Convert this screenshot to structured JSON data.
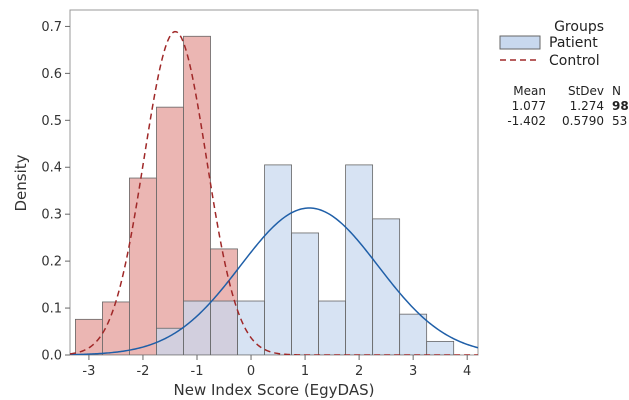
{
  "chart_data": {
    "type": "histogram",
    "xlabel": "New Index Score (EgyDAS)",
    "ylabel": "Density",
    "xlim": [
      -3.35,
      4.2
    ],
    "ylim": [
      0,
      0.735
    ],
    "x_ticks": [
      -3,
      -2,
      -1,
      0,
      1,
      2,
      3,
      4
    ],
    "y_ticks": [
      0.0,
      0.1,
      0.2,
      0.3,
      0.4,
      0.5,
      0.6,
      0.7
    ],
    "x_tick_labels": [
      "-3",
      "-2",
      "-1",
      "0",
      "1",
      "2",
      "3",
      "4"
    ],
    "y_tick_labels": [
      "0.0",
      "0.1",
      "0.2",
      "0.3",
      "0.4",
      "0.5",
      "0.6",
      "0.7"
    ],
    "bin_width": 0.5,
    "legend": {
      "title": "Groups",
      "position": "top-right"
    },
    "series": [
      {
        "name": "Patient",
        "fill_color": "#c8d8ee",
        "edge_color": "#666666",
        "curve_color": "#1f5fa8",
        "curve_style": "solid",
        "bins": [
          {
            "x0": -1.75,
            "x1": -1.25,
            "density": 0.057
          },
          {
            "x0": -1.25,
            "x1": -0.75,
            "density": 0.115
          },
          {
            "x0": -0.75,
            "x1": -0.25,
            "density": 0.115
          },
          {
            "x0": -0.25,
            "x1": 0.25,
            "density": 0.115
          },
          {
            "x0": 0.25,
            "x1": 0.75,
            "density": 0.405
          },
          {
            "x0": 0.75,
            "x1": 1.25,
            "density": 0.26
          },
          {
            "x0": 1.25,
            "x1": 1.75,
            "density": 0.115
          },
          {
            "x0": 1.75,
            "x1": 2.25,
            "density": 0.405
          },
          {
            "x0": 2.25,
            "x1": 2.75,
            "density": 0.29
          },
          {
            "x0": 2.75,
            "x1": 3.25,
            "density": 0.087
          },
          {
            "x0": 3.25,
            "x1": 3.75,
            "density": 0.029
          }
        ],
        "normal_fit": {
          "mean": 1.077,
          "stdev": 1.274
        }
      },
      {
        "name": "Control",
        "fill_color": "#e8a9a6",
        "edge_color": "#666666",
        "curve_color": "#a02828",
        "curve_style": "dashed",
        "bins": [
          {
            "x0": -3.25,
            "x1": -2.75,
            "density": 0.076
          },
          {
            "x0": -2.75,
            "x1": -2.25,
            "density": 0.113
          },
          {
            "x0": -2.25,
            "x1": -1.75,
            "density": 0.377
          },
          {
            "x0": -1.75,
            "x1": -1.25,
            "density": 0.528
          },
          {
            "x0": -1.25,
            "x1": -0.75,
            "density": 0.679
          },
          {
            "x0": -0.75,
            "x1": -0.25,
            "density": 0.226
          }
        ],
        "normal_fit": {
          "mean": -1.402,
          "stdev": 0.579
        }
      }
    ],
    "stats_table": {
      "headers": [
        "Mean",
        "StDev",
        "N"
      ],
      "rows": [
        {
          "mean": "1.077",
          "stdev": "1.274",
          "n": "98"
        },
        {
          "mean": "-1.402",
          "stdev": "0.5790",
          "n": "53"
        }
      ]
    }
  }
}
